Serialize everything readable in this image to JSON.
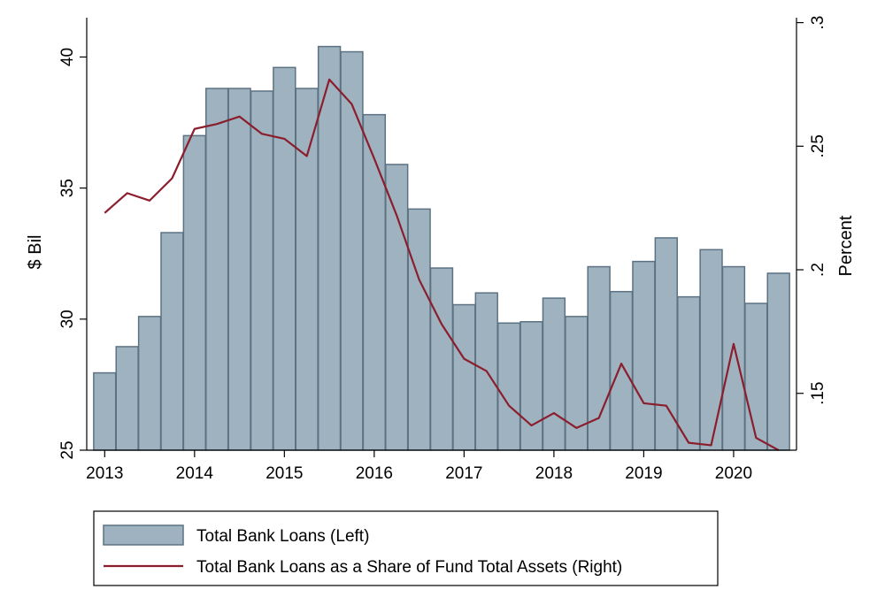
{
  "chart_data": {
    "type": "bar+line",
    "x": [
      2013.0,
      2013.25,
      2013.5,
      2013.75,
      2014.0,
      2014.25,
      2014.5,
      2014.75,
      2015.0,
      2015.25,
      2015.5,
      2015.75,
      2016.0,
      2016.25,
      2016.5,
      2016.75,
      2017.0,
      2017.25,
      2017.5,
      2017.75,
      2018.0,
      2018.25,
      2018.5,
      2018.75,
      2019.0,
      2019.25,
      2019.5,
      2019.75,
      2020.0,
      2020.25,
      2020.5
    ],
    "series": [
      {
        "name": "Total Bank Loans (Left)",
        "type": "bar",
        "axis": "left",
        "color": "#9fb2c0",
        "values": [
          27.95,
          28.95,
          30.1,
          33.3,
          37.0,
          38.8,
          38.8,
          38.7,
          39.6,
          38.8,
          40.4,
          40.2,
          37.8,
          35.9,
          34.2,
          31.95,
          30.55,
          31.0,
          29.85,
          29.9,
          30.8,
          30.1,
          32.0,
          31.05,
          32.2,
          33.1,
          30.85,
          32.65,
          32.0,
          30.6,
          31.75
        ]
      },
      {
        "name": "Total Bank Loans as a Share of Fund Total Assets (Right)",
        "type": "line",
        "axis": "right",
        "color": "#8b1e2d",
        "values": [
          0.223,
          0.231,
          0.228,
          0.237,
          0.257,
          0.259,
          0.262,
          0.255,
          0.253,
          0.246,
          0.277,
          0.267,
          0.245,
          0.222,
          0.196,
          0.178,
          0.164,
          0.159,
          0.145,
          0.137,
          0.142,
          0.136,
          0.14,
          0.162,
          0.146,
          0.145,
          0.13,
          0.129,
          0.17,
          0.132,
          0.127
        ]
      }
    ],
    "xlabel": "",
    "ylabel_left": "$ Bil",
    "ylabel_right": "Percent",
    "xlim": [
      2012.8,
      2020.7
    ],
    "ylim_left": [
      25,
      41.5
    ],
    "ylim_right": [
      0.127,
      0.302
    ],
    "xticks": [
      2013,
      2014,
      2015,
      2016,
      2017,
      2018,
      2019,
      2020
    ],
    "xtick_labels": [
      "2013",
      "2014",
      "2015",
      "2016",
      "2017",
      "2018",
      "2019",
      "2020"
    ],
    "yticks_left": [
      25,
      30,
      35,
      40
    ],
    "ytick_labels_left": [
      "25",
      "30",
      "35",
      "40"
    ],
    "yticks_right": [
      0.15,
      0.2,
      0.25,
      0.3
    ],
    "ytick_labels_right": [
      ".15",
      ".2",
      ".25",
      ".3"
    ],
    "grid": false,
    "legend": {
      "position": "bottom",
      "entries": [
        "Total Bank Loans (Left)",
        "Total Bank Loans as a Share of Fund Total Assets (Right)"
      ]
    }
  }
}
